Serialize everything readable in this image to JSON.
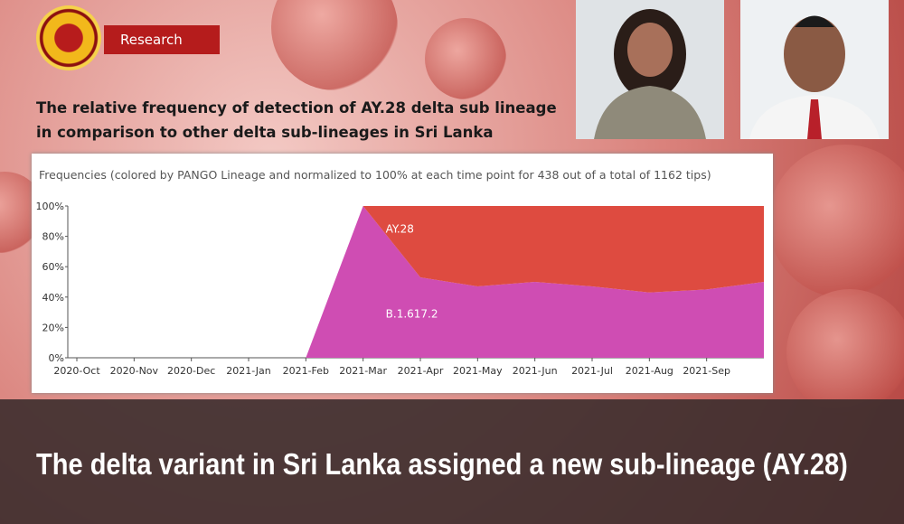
{
  "header": {
    "badge": "Research",
    "article_title": "The relative frequency of detection of AY.28 delta sub lineage in comparison to other delta sub-lineages in Sri Lanka"
  },
  "headline": "The delta variant in Sri Lanka assigned a new sub-lineage (AY.28)",
  "chart_data": {
    "type": "stacked-area",
    "title": "Frequencies (colored by PANGO Lineage and normalized to 100% at each time point for 438 out of a total of 1162 tips)",
    "categories": [
      "2020-Oct",
      "2020-Nov",
      "2020-Dec",
      "2021-Jan",
      "2021-Feb",
      "2021-Mar",
      "2021-Apr",
      "2021-May",
      "2021-Jun",
      "2021-Jul",
      "2021-Aug",
      "2021-Sep",
      null
    ],
    "series": [
      {
        "name": "B.1.617.2",
        "color": "#cf4db3",
        "values": [
          0,
          0,
          0,
          0,
          0,
          100,
          53,
          47,
          50,
          47,
          43,
          45,
          50
        ]
      },
      {
        "name": "AY.28",
        "color": "#de4b40",
        "values": [
          0,
          0,
          0,
          0,
          0,
          0,
          47,
          53,
          50,
          53,
          57,
          55,
          50
        ]
      }
    ],
    "ylim": [
      0,
      100
    ],
    "yticks": [
      {
        "value": 0,
        "label": "0%"
      },
      {
        "value": 20,
        "label": "20%"
      },
      {
        "value": 40,
        "label": "40%"
      },
      {
        "value": 60,
        "label": "60%"
      },
      {
        "value": 80,
        "label": "80%"
      },
      {
        "value": 100,
        "label": "100%"
      }
    ],
    "grid": false
  }
}
